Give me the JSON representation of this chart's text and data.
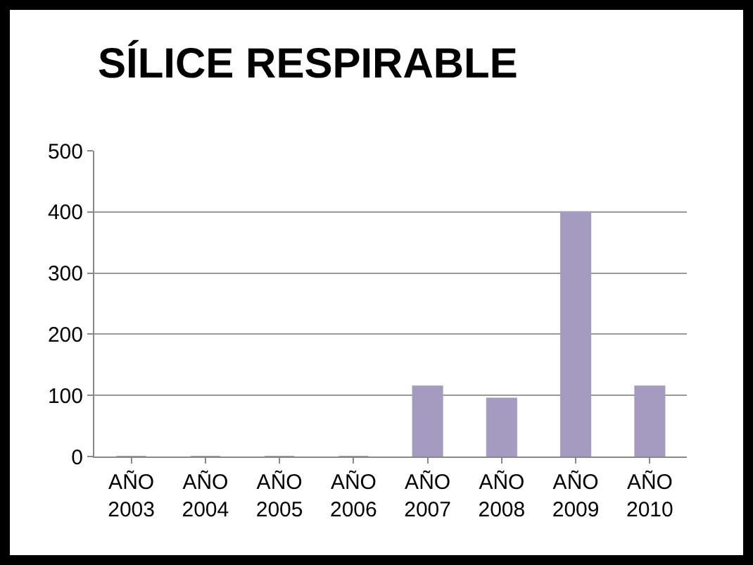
{
  "chart_data": {
    "type": "bar",
    "title": "SÍLICE RESPIRABLE",
    "categories": [
      "AÑO 2003",
      "AÑO 2004",
      "AÑO 2005",
      "AÑO 2006",
      "AÑO 2007",
      "AÑO 2008",
      "AÑO 2009",
      "AÑO 2010"
    ],
    "values": [
      0,
      0,
      0,
      0,
      115,
      95,
      400,
      115
    ],
    "color": "#a59bc0",
    "ylim": [
      0,
      500
    ],
    "yticks": [
      0,
      100,
      200,
      300,
      400,
      500
    ],
    "grid": "y",
    "legend": false
  }
}
